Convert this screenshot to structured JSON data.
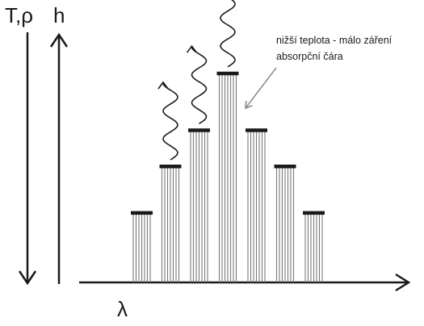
{
  "labels": {
    "temperature_density": "T,ρ",
    "height": "h",
    "wavelength": "λ"
  },
  "annotation": {
    "line1": "nižší teplota - málo záření",
    "line2": "absorpční čára"
  },
  "bars": [
    {
      "level": 0.27,
      "photon": false
    },
    {
      "level": 0.45,
      "photon": true
    },
    {
      "level": 0.59,
      "photon": true
    },
    {
      "level": 0.81,
      "photon": true
    },
    {
      "level": 0.59,
      "photon": false
    },
    {
      "level": 0.45,
      "photon": false
    },
    {
      "level": 0.27,
      "photon": false
    }
  ],
  "colors": {
    "ink": "#1a1a1a",
    "hatch": "#7a7a7a",
    "pointer": "#8a8a8a"
  }
}
